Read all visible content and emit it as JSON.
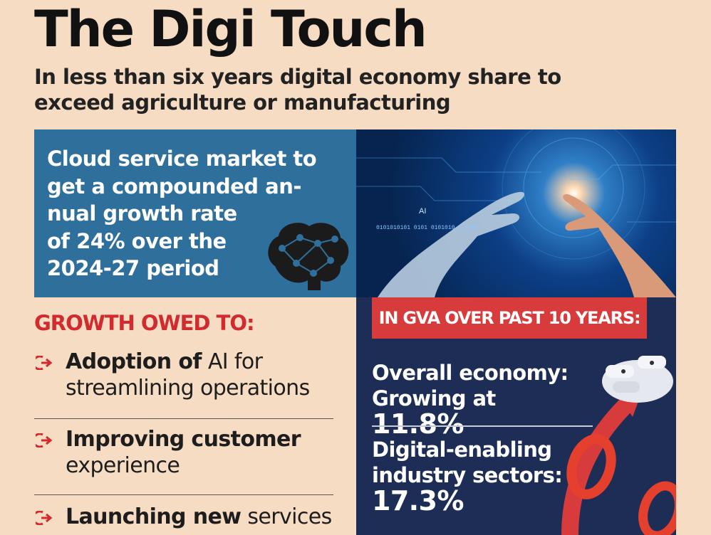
{
  "title": "The Digi Touch",
  "subtitle": "In less than six years digital economy share to exceed agriculture or manufacturing",
  "cloud_text": "Cloud service market to\nget a compounded an-\nnual growth rate\nof 24% over the\n2024-27 period",
  "hero_image": {
    "label": "AI",
    "binary": "0101010101 0101 0101010 1  0101"
  },
  "growth": {
    "heading": "GROWTH OWED TO:",
    "items": [
      {
        "bold": "Adoption of",
        "normal": " AI for streamlining operations"
      },
      {
        "bold": "Improving customer",
        "normal": " experience"
      },
      {
        "bold": "Launching new",
        "normal": " services"
      }
    ]
  },
  "gva": {
    "heading": "IN GVA OVER PAST 10 YEARS:",
    "stat1_text": "Overall economy: Growing at",
    "stat1_value": "11.8%",
    "stat2_text": "Digital-enabling industry sectors:",
    "stat2_value": "17.3%"
  },
  "colors": {
    "red": "#d83b3b",
    "navy": "#1d2d55",
    "blue": "#2e6f9c",
    "background": "#f7dcc4"
  },
  "icons": [
    "brain-icon",
    "arrow-bullet-icon",
    "robot-hand-icon",
    "percent-icon",
    "up-arrow-icon"
  ]
}
